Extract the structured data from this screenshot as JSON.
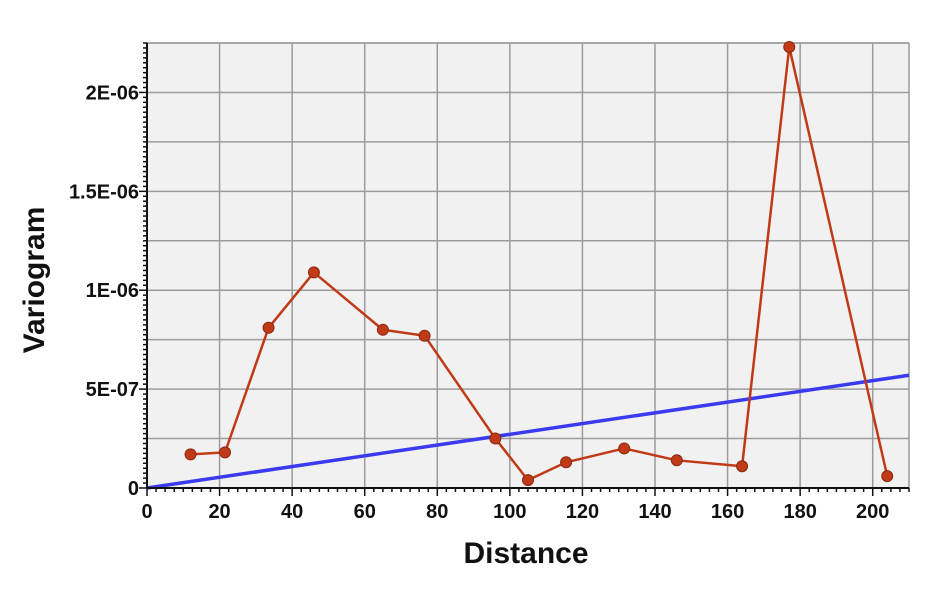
{
  "chart_data": {
    "type": "line",
    "title": "",
    "xlabel": "Distance",
    "ylabel": "Variogram",
    "xlim": [
      0,
      210
    ],
    "ylim": [
      0,
      2.25e-06
    ],
    "grid": true,
    "x_ticks": [
      0,
      20,
      40,
      60,
      80,
      100,
      120,
      140,
      160,
      180,
      200
    ],
    "x_tick_labels": [
      "0",
      "20",
      "40",
      "60",
      "80",
      "100",
      "120",
      "140",
      "160",
      "180",
      "200"
    ],
    "y_ticks": [
      0,
      5e-07,
      1e-06,
      1.5e-06,
      2e-06
    ],
    "y_tick_labels": [
      "0",
      "5E-07",
      "1E-06",
      "1.5E-06",
      "2E-06"
    ],
    "series": [
      {
        "kind": "experimental",
        "color": "#c03a18",
        "markers": true,
        "x": [
          12,
          21.5,
          33.5,
          46,
          65,
          76.5,
          96,
          105,
          115.5,
          131.5,
          146,
          164,
          177,
          204
        ],
        "y": [
          1.7e-07,
          1.8e-07,
          8.1e-07,
          1.09e-06,
          8e-07,
          7.7e-07,
          2.5e-07,
          4e-08,
          1.3e-07,
          2e-07,
          1.4e-07,
          1.1e-07,
          2.23e-06,
          6e-08
        ]
      },
      {
        "kind": "model",
        "color": "#3a3af0",
        "markers": false,
        "x": [
          0,
          210
        ],
        "y": [
          0,
          5.7e-07
        ]
      }
    ]
  }
}
